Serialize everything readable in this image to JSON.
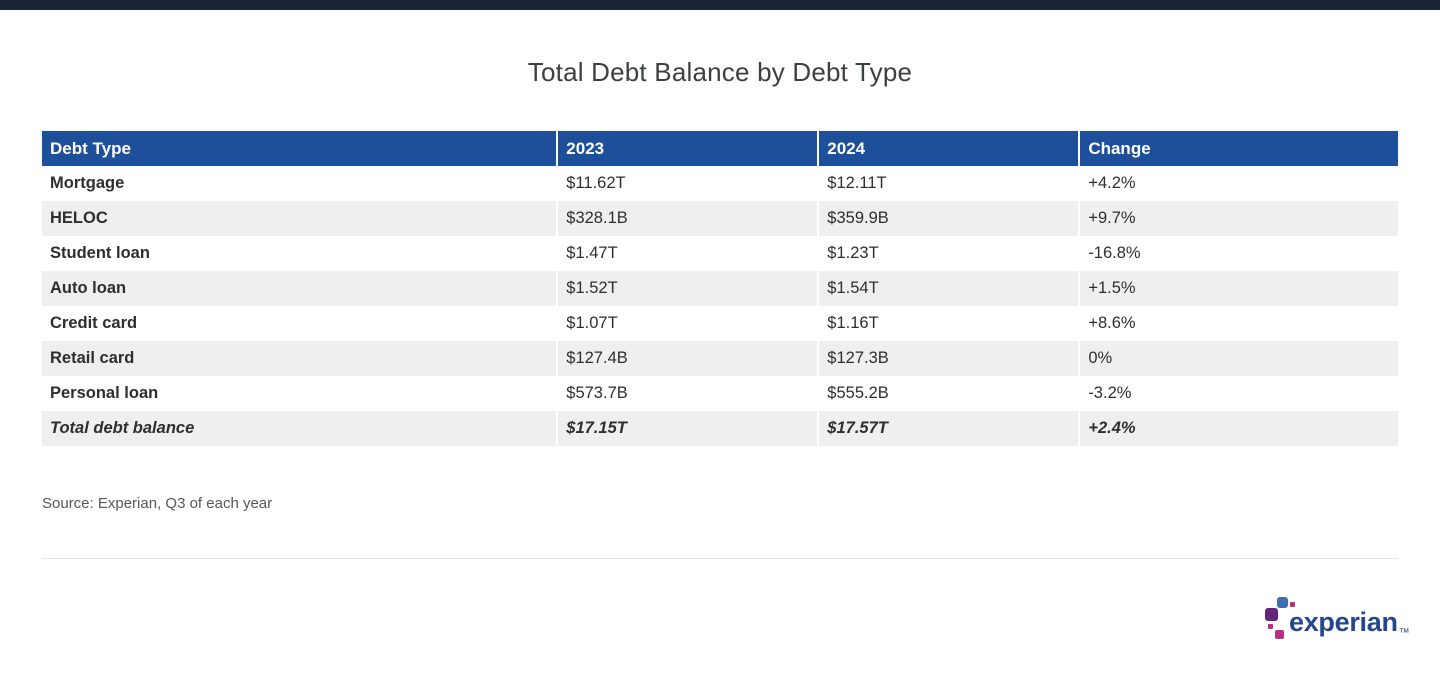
{
  "page": {
    "background_color": "#ffffff",
    "top_bar_color": "#1a2438"
  },
  "title": "Total Debt Balance by Debt Type",
  "table": {
    "header_bg_color": "#1e4f9b",
    "header_text_color": "#ffffff",
    "stripe_color": "#efefef",
    "columns": [
      "Debt Type",
      "2023",
      "2024",
      "Change"
    ],
    "rows": [
      {
        "debt_type": "Mortgage",
        "y2023": "$11.62T",
        "y2024": "$12.11T",
        "change": "+4.2%"
      },
      {
        "debt_type": "HELOC",
        "y2023": "$328.1B",
        "y2024": "$359.9B",
        "change": "+9.7%"
      },
      {
        "debt_type": "Student loan",
        "y2023": "$1.47T",
        "y2024": "$1.23T",
        "change": "-16.8%"
      },
      {
        "debt_type": "Auto loan",
        "y2023": "$1.52T",
        "y2024": "$1.54T",
        "change": "+1.5%"
      },
      {
        "debt_type": "Credit card",
        "y2023": "$1.07T",
        "y2024": "$1.16T",
        "change": "+8.6%"
      },
      {
        "debt_type": "Retail card",
        "y2023": "$127.4B",
        "y2024": "$127.3B",
        "change": "0%"
      },
      {
        "debt_type": "Personal loan",
        "y2023": "$573.7B",
        "y2024": "$555.2B",
        "change": "-3.2%"
      }
    ],
    "total_row": {
      "debt_type": "Total debt balance",
      "y2023": "$17.15T",
      "y2024": "$17.57T",
      "change": "+2.4%"
    }
  },
  "source": "Source: Experian, Q3 of each year",
  "logo": {
    "wordmark": "experian",
    "trademark": "™",
    "wordmark_color": "#26478d",
    "square_colors": {
      "blue": "#406eb3",
      "purple": "#632678",
      "magenta": "#ba2f7d"
    }
  },
  "chart_data": {
    "type": "table",
    "title": "Total Debt Balance by Debt Type",
    "columns": [
      "Debt Type",
      "2023",
      "2024",
      "Change"
    ],
    "rows": [
      [
        "Mortgage",
        "$11.62T",
        "$12.11T",
        "+4.2%"
      ],
      [
        "HELOC",
        "$328.1B",
        "$359.9B",
        "+9.7%"
      ],
      [
        "Student loan",
        "$1.47T",
        "$1.23T",
        "-16.8%"
      ],
      [
        "Auto loan",
        "$1.52T",
        "$1.54T",
        "+1.5%"
      ],
      [
        "Credit card",
        "$1.07T",
        "$1.16T",
        "+8.6%"
      ],
      [
        "Retail card",
        "$127.4B",
        "$127.3B",
        "0%"
      ],
      [
        "Personal loan",
        "$573.7B",
        "$555.2B",
        "-3.2%"
      ],
      [
        "Total debt balance",
        "$17.15T",
        "$17.57T",
        "+2.4%"
      ]
    ],
    "source": "Source: Experian, Q3 of each year"
  }
}
